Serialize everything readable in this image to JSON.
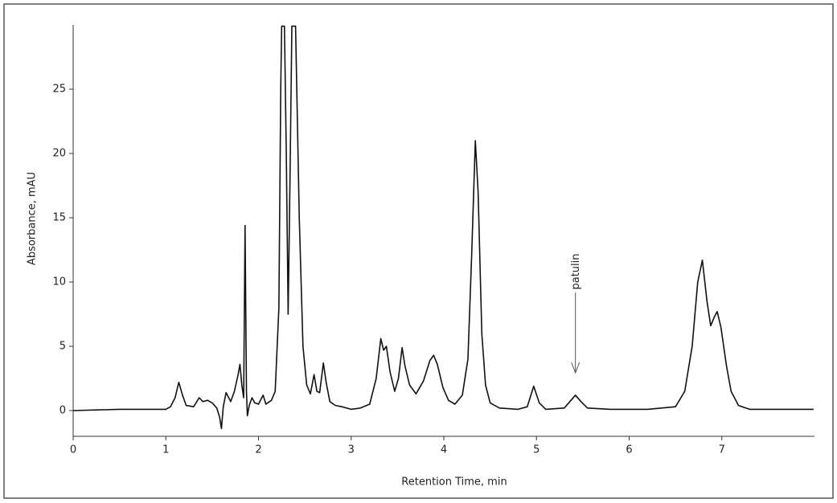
{
  "chart_data": {
    "type": "line",
    "x_label": "Retention Time, min",
    "y_label": "Absorbance, mAU",
    "xlim": [
      0,
      8
    ],
    "ylim": [
      -2,
      30
    ],
    "xticks": [
      0,
      1,
      2,
      3,
      4,
      5,
      6,
      7
    ],
    "yticks": [
      0,
      5,
      10,
      15,
      20,
      25
    ],
    "color": "#111111",
    "annotation": {
      "text": "patulin",
      "x": 5.42
    },
    "x": [
      0,
      0.5,
      1.0,
      1.05,
      1.1,
      1.14,
      1.18,
      1.22,
      1.3,
      1.36,
      1.4,
      1.45,
      1.5,
      1.55,
      1.58,
      1.6,
      1.62,
      1.65,
      1.7,
      1.74,
      1.78,
      1.8,
      1.82,
      1.84,
      1.855,
      1.87,
      1.88,
      1.9,
      1.93,
      1.96,
      2.0,
      2.05,
      2.08,
      2.14,
      2.18,
      2.22,
      2.24,
      2.25,
      2.28,
      2.3,
      2.32,
      2.34,
      2.36,
      2.4,
      2.44,
      2.48,
      2.52,
      2.56,
      2.6,
      2.63,
      2.66,
      2.7,
      2.73,
      2.77,
      2.83,
      2.9,
      3.0,
      3.1,
      3.2,
      3.27,
      3.32,
      3.35,
      3.38,
      3.42,
      3.47,
      3.51,
      3.55,
      3.58,
      3.63,
      3.7,
      3.78,
      3.85,
      3.89,
      3.93,
      3.99,
      4.05,
      4.12,
      4.2,
      4.26,
      4.3,
      4.34,
      4.37,
      4.41,
      4.45,
      4.5,
      4.6,
      4.8,
      4.9,
      4.97,
      5.03,
      5.1,
      5.3,
      5.36,
      5.42,
      5.48,
      5.55,
      5.8,
      6.2,
      6.5,
      6.6,
      6.68,
      6.74,
      6.79,
      6.84,
      6.88,
      6.92,
      6.95,
      6.99,
      7.05,
      7.1,
      7.18,
      7.3,
      7.99
    ],
    "values": [
      0,
      0.1,
      0.1,
      0.3,
      1,
      2.2,
      1.2,
      0.4,
      0.3,
      1.0,
      0.7,
      0.8,
      0.6,
      0.2,
      -0.5,
      -1.4,
      0.3,
      1.4,
      0.7,
      1.5,
      2.8,
      3.6,
      2.0,
      1.0,
      14.4,
      1.5,
      -0.4,
      0.4,
      1.0,
      0.6,
      0.5,
      1.2,
      0.5,
      0.8,
      1.5,
      8,
      25,
      29.9,
      29.9,
      20,
      7.5,
      18,
      29.9,
      29.9,
      15,
      5,
      2,
      1.3,
      2.8,
      1.5,
      1.4,
      3.7,
      2.2,
      0.7,
      0.4,
      0.3,
      0.1,
      0.2,
      0.5,
      2.5,
      5.6,
      4.7,
      5.0,
      3.0,
      1.5,
      2.5,
      4.9,
      3.5,
      2.0,
      1.3,
      2.3,
      3.9,
      4.3,
      3.6,
      1.8,
      0.8,
      0.5,
      1.2,
      4,
      12,
      21,
      17,
      6,
      2,
      0.6,
      0.2,
      0.1,
      0.3,
      1.9,
      0.6,
      0.1,
      0.2,
      0.7,
      1.2,
      0.7,
      0.2,
      0.1,
      0.1,
      0.3,
      1.5,
      5,
      10,
      11.7,
      8.5,
      6.6,
      7.3,
      7.7,
      6.5,
      3.5,
      1.5,
      0.4,
      0.1,
      0.1
    ]
  }
}
